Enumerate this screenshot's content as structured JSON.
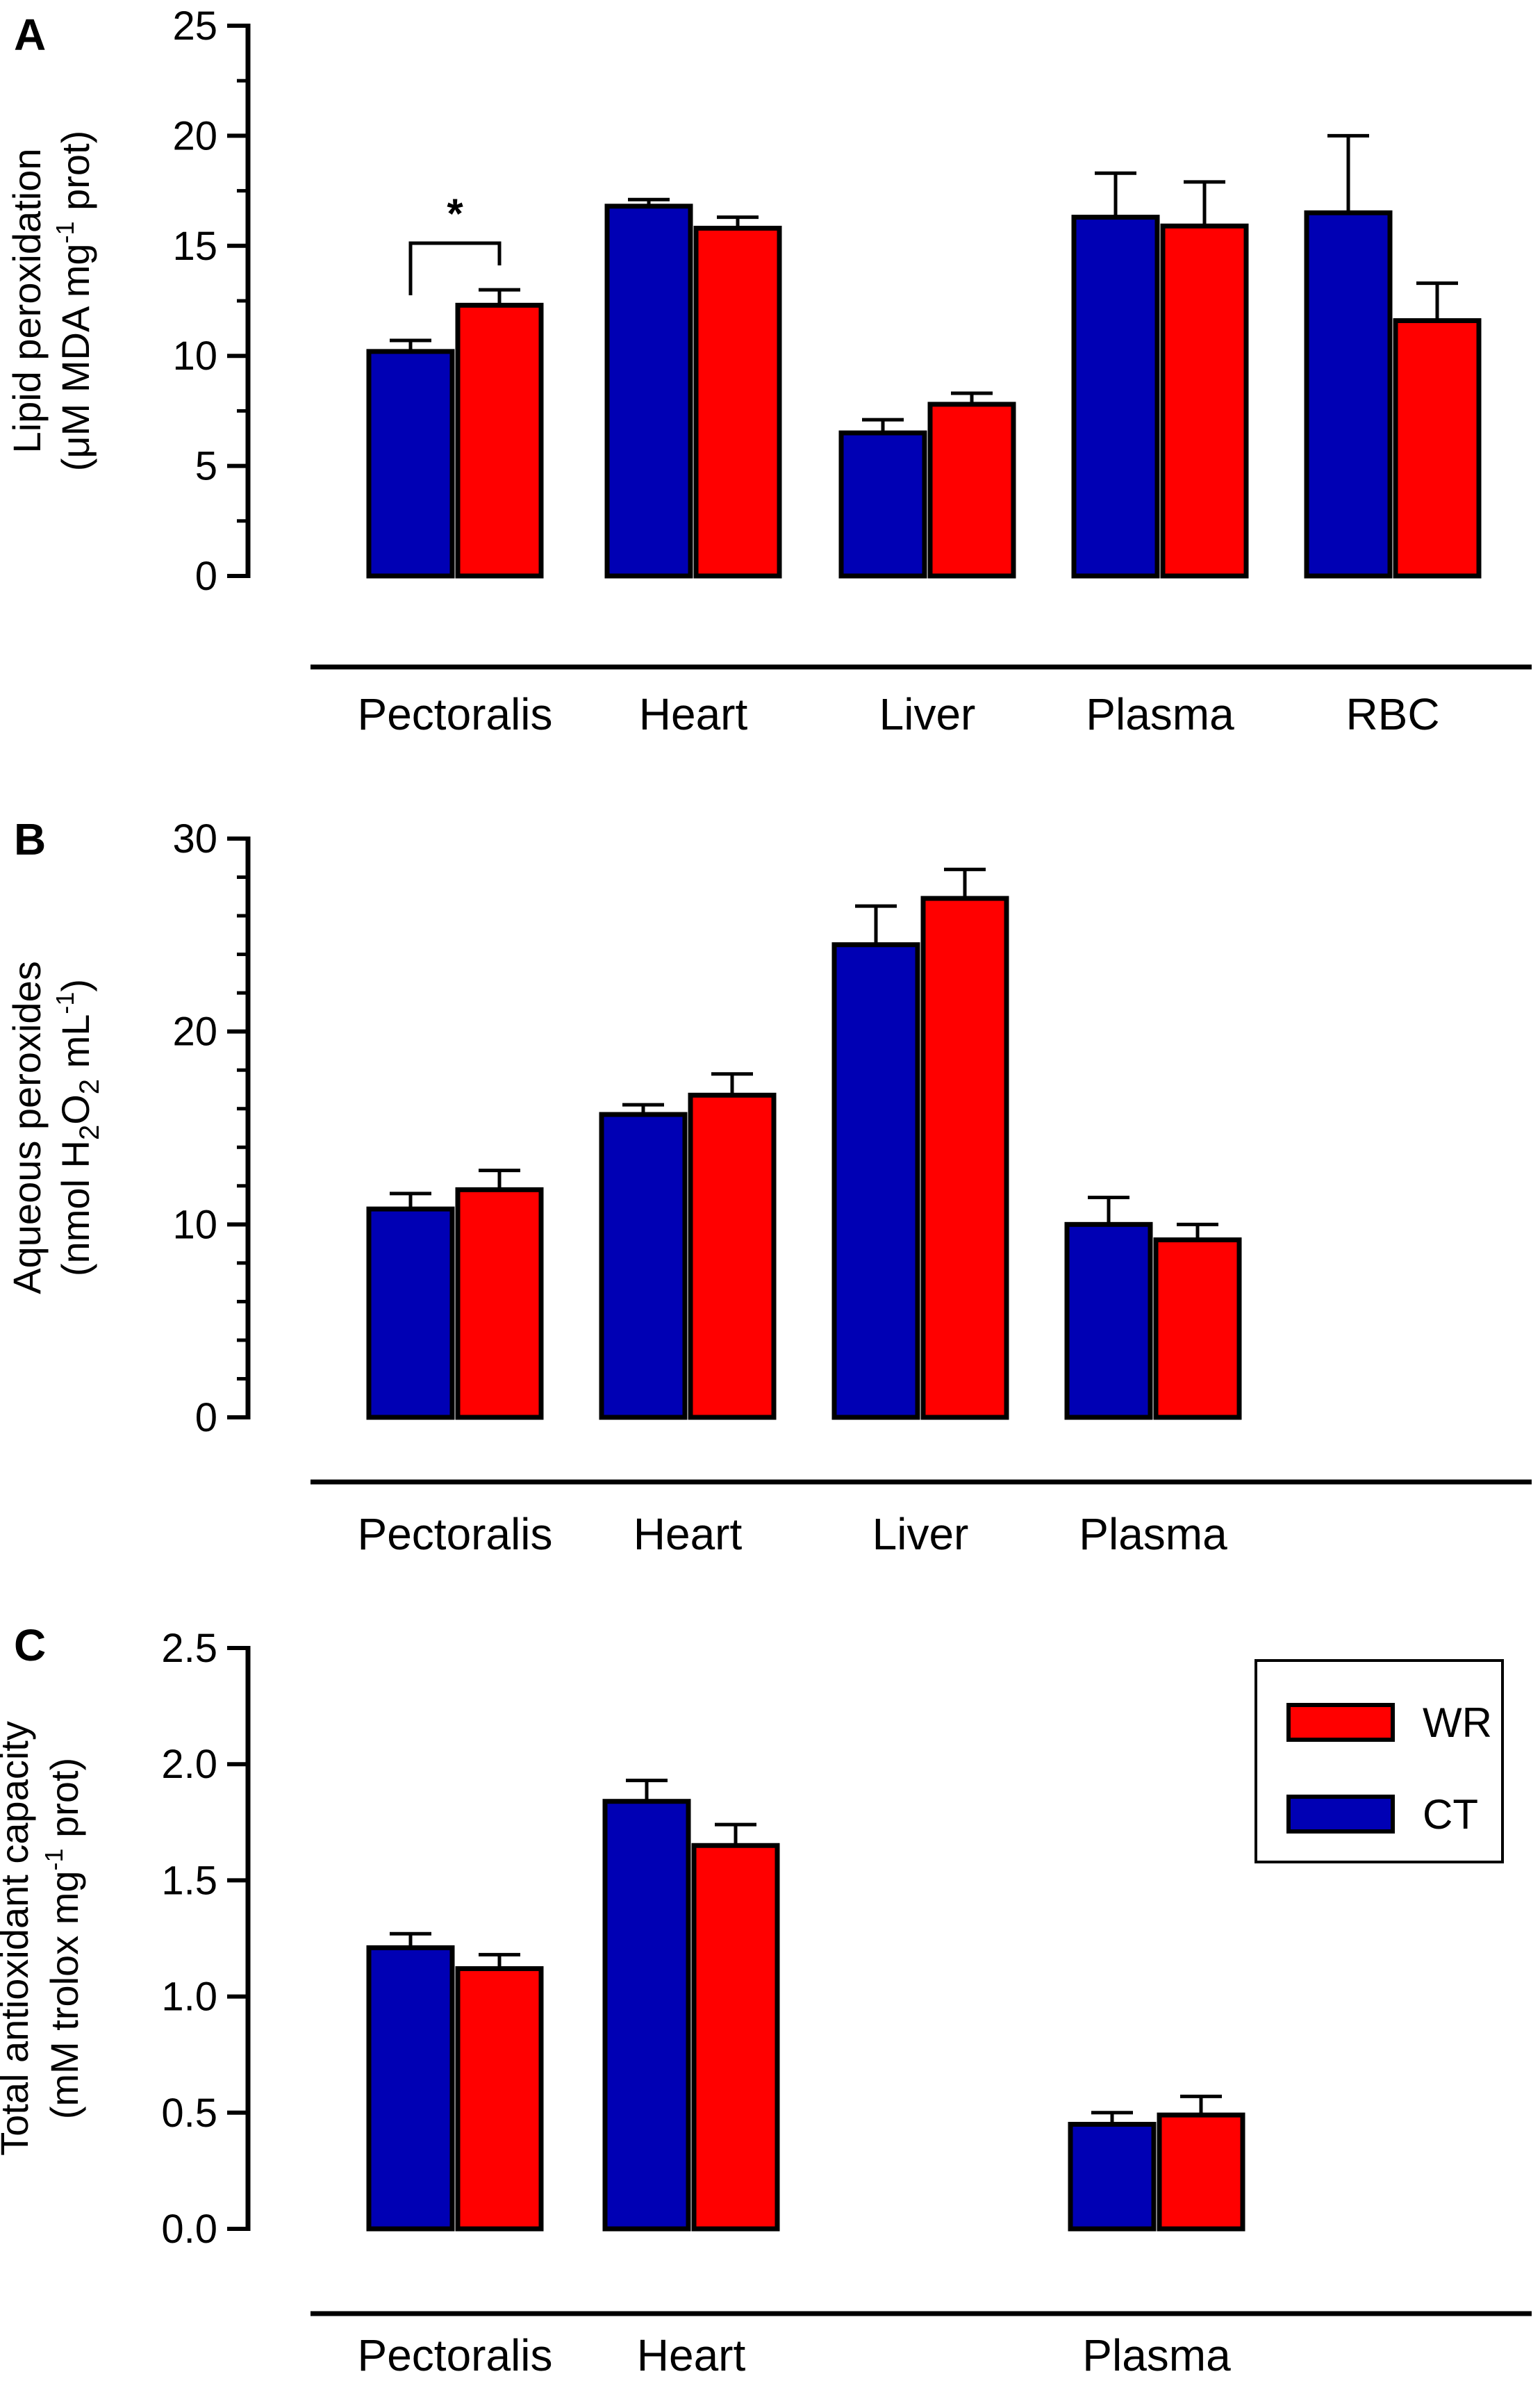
{
  "legend": [
    {
      "label": "WR",
      "color": "#ff0000"
    },
    {
      "label": "CT",
      "color": "#0000b4"
    }
  ],
  "colors": {
    "CT": "#0000b4",
    "WR": "#ff0000",
    "outline": "#000000"
  },
  "chart_data": [
    {
      "type": "bar",
      "panel": "A",
      "ylabel_line1": "Lipid peroxidation",
      "ylabel_line2_parts": [
        "(μM MDA mg",
        "-1",
        " prot)"
      ],
      "ylim": [
        0,
        25
      ],
      "yticks": [
        0,
        5,
        10,
        15,
        20,
        25
      ],
      "minor_ticks": true,
      "categories": [
        "Pectoralis",
        "Heart",
        "Liver",
        "Plasma",
        "RBC"
      ],
      "series": [
        {
          "name": "CT",
          "values": [
            10.2,
            16.8,
            6.5,
            16.3,
            16.5
          ],
          "errors": [
            0.5,
            0.3,
            0.6,
            2.0,
            3.5
          ]
        },
        {
          "name": "WR",
          "values": [
            12.3,
            15.8,
            7.8,
            15.9,
            11.6
          ],
          "errors": [
            0.7,
            0.5,
            0.5,
            2.0,
            1.7
          ]
        }
      ],
      "significance": [
        {
          "category": "Pectoralis",
          "label": "*"
        }
      ]
    },
    {
      "type": "bar",
      "panel": "B",
      "ylabel_line1": "Aqueous peroxides",
      "ylabel_line2_parts": [
        "(nmol H",
        "2",
        "O",
        "2",
        " mL",
        "-1",
        ")"
      ],
      "ylim": [
        0,
        30
      ],
      "yticks": [
        0,
        10,
        20,
        30
      ],
      "minor_ticks": true,
      "categories": [
        "Pectoralis",
        "Heart",
        "Liver",
        "Plasma"
      ],
      "series": [
        {
          "name": "CT",
          "values": [
            10.8,
            15.7,
            24.5,
            10.0
          ],
          "errors": [
            0.8,
            0.5,
            2.0,
            1.4
          ]
        },
        {
          "name": "WR",
          "values": [
            11.8,
            16.7,
            26.9,
            9.2
          ],
          "errors": [
            1.0,
            1.1,
            1.5,
            0.8
          ]
        }
      ]
    },
    {
      "type": "bar",
      "panel": "C",
      "ylabel_line1": "Total antioxidant capacity",
      "ylabel_line2_parts": [
        "(mM trolox mg",
        "-1",
        " prot)"
      ],
      "ylim": [
        0,
        2.5
      ],
      "yticks": [
        "0.0",
        "0.5",
        "1.0",
        "1.5",
        "2.0",
        "2.5"
      ],
      "minor_ticks": false,
      "categories": [
        "Pectoralis",
        "Heart",
        "Plasma"
      ],
      "series": [
        {
          "name": "CT",
          "values": [
            1.21,
            1.84,
            0.45
          ],
          "errors": [
            0.06,
            0.09,
            0.05
          ]
        },
        {
          "name": "WR",
          "values": [
            1.12,
            1.65,
            0.49
          ],
          "errors": [
            0.06,
            0.09,
            0.08
          ]
        }
      ]
    }
  ]
}
